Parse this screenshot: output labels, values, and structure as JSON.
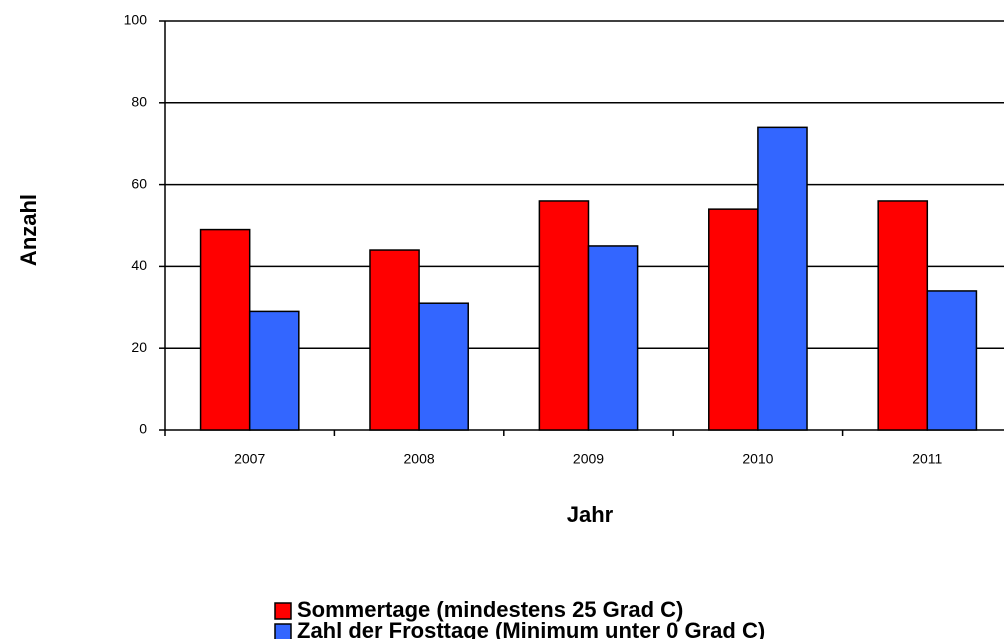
{
  "chart_data": {
    "type": "bar",
    "x_label": "Jahr",
    "y_label": "Anzahl",
    "categories": [
      "2007",
      "2008",
      "2009",
      "2010",
      "2011"
    ],
    "series": [
      {
        "name": "Sommertage (mindestens 25 Grad C)",
        "color": "#ff0000",
        "values": [
          49,
          44,
          56,
          54,
          56
        ]
      },
      {
        "name": "Zahl der Frosttage (Minimum unter 0 Grad C)",
        "color": "#3366ff",
        "values": [
          29,
          31,
          45,
          74,
          34
        ]
      }
    ],
    "ylim": [
      0,
      100
    ],
    "yticks": [
      0,
      20,
      40,
      60,
      80,
      100
    ],
    "grid": true,
    "legend": "bottom"
  }
}
